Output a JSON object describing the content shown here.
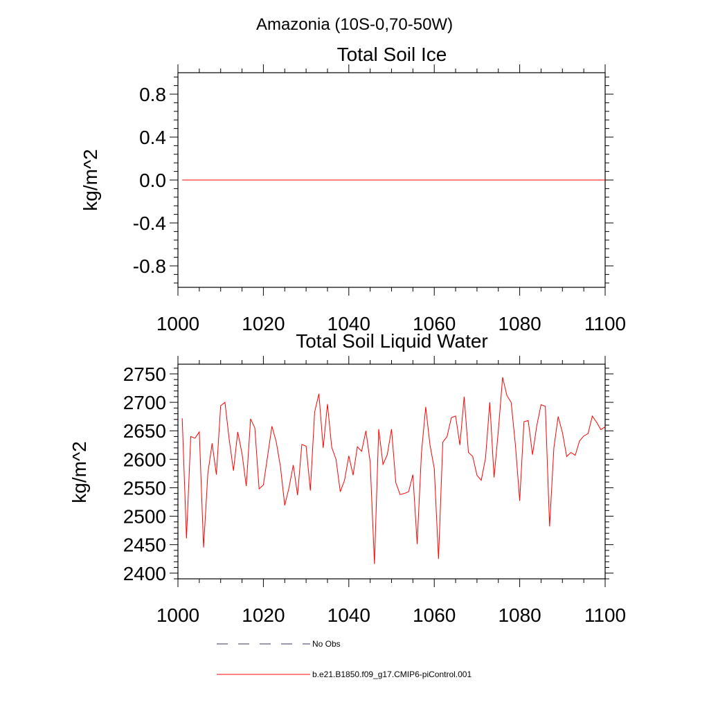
{
  "page_title": "Amazonia (10S-0,70-50W)",
  "chart_data": [
    {
      "type": "line",
      "title": "Total Soil Ice",
      "xlabel": "",
      "ylabel": "kg/m^2",
      "xlim": [
        1000,
        1100
      ],
      "ylim": [
        -1.0,
        1.0
      ],
      "x_ticks": [
        1000,
        1020,
        1040,
        1060,
        1080,
        1100
      ],
      "y_ticks": [
        -0.8,
        -0.4,
        0.0,
        0.4,
        0.8
      ],
      "x_tick_labels": [
        "1000",
        "1020",
        "1040",
        "1060",
        "1080",
        "1100"
      ],
      "y_tick_labels": [
        "-0.8",
        "-0.4",
        "0.0",
        "0.4",
        "0.8"
      ],
      "grid": false,
      "series": [
        {
          "color": "#ff0000",
          "x": [
            1001,
            1100
          ],
          "values": [
            0.0,
            0.0
          ]
        }
      ]
    },
    {
      "type": "line",
      "title": "Total Soil Liquid Water",
      "xlabel": "",
      "ylabel": "kg/m^2",
      "xlim": [
        1000,
        1100
      ],
      "ylim": [
        2390,
        2767
      ],
      "x_ticks": [
        1000,
        1020,
        1040,
        1060,
        1080,
        1100
      ],
      "y_ticks": [
        2400,
        2450,
        2500,
        2550,
        2600,
        2650,
        2700,
        2750
      ],
      "x_tick_labels": [
        "1000",
        "1020",
        "1040",
        "1060",
        "1080",
        "1100"
      ],
      "y_tick_labels": [
        "2400",
        "2450",
        "2500",
        "2550",
        "2600",
        "2650",
        "2700",
        "2750"
      ],
      "grid": false,
      "series": [
        {
          "color": "#ff0000",
          "x_start": 1001,
          "x_step": 1,
          "values": [
            2672,
            2461,
            2640,
            2637,
            2648,
            2445,
            2575,
            2628,
            2573,
            2694,
            2700,
            2635,
            2580,
            2648,
            2610,
            2553,
            2671,
            2655,
            2548,
            2555,
            2606,
            2658,
            2631,
            2587,
            2519,
            2550,
            2590,
            2537,
            2626,
            2623,
            2545,
            2683,
            2715,
            2620,
            2697,
            2621,
            2600,
            2543,
            2563,
            2606,
            2572,
            2622,
            2614,
            2650,
            2595,
            2416,
            2653,
            2591,
            2608,
            2653,
            2559,
            2538,
            2540,
            2543,
            2573,
            2451,
            2611,
            2692,
            2625,
            2584,
            2425,
            2630,
            2640,
            2673,
            2676,
            2625,
            2710,
            2612,
            2605,
            2572,
            2563,
            2602,
            2700,
            2568,
            2650,
            2744,
            2712,
            2700,
            2625,
            2527,
            2666,
            2668,
            2608,
            2659,
            2696,
            2693,
            2482,
            2620,
            2675,
            2647,
            2605,
            2612,
            2607,
            2632,
            2641,
            2645,
            2676,
            2665,
            2652,
            2657
          ]
        }
      ]
    }
  ],
  "legend": {
    "placement": "bottom-left",
    "items": [
      {
        "label": "No Obs",
        "color": "#333366",
        "dash": "dashed"
      },
      {
        "label": "b.e21.B1850.f09_g17.CMIP6-piControl.001",
        "color": "#ff0000",
        "dash": "solid"
      }
    ]
  }
}
